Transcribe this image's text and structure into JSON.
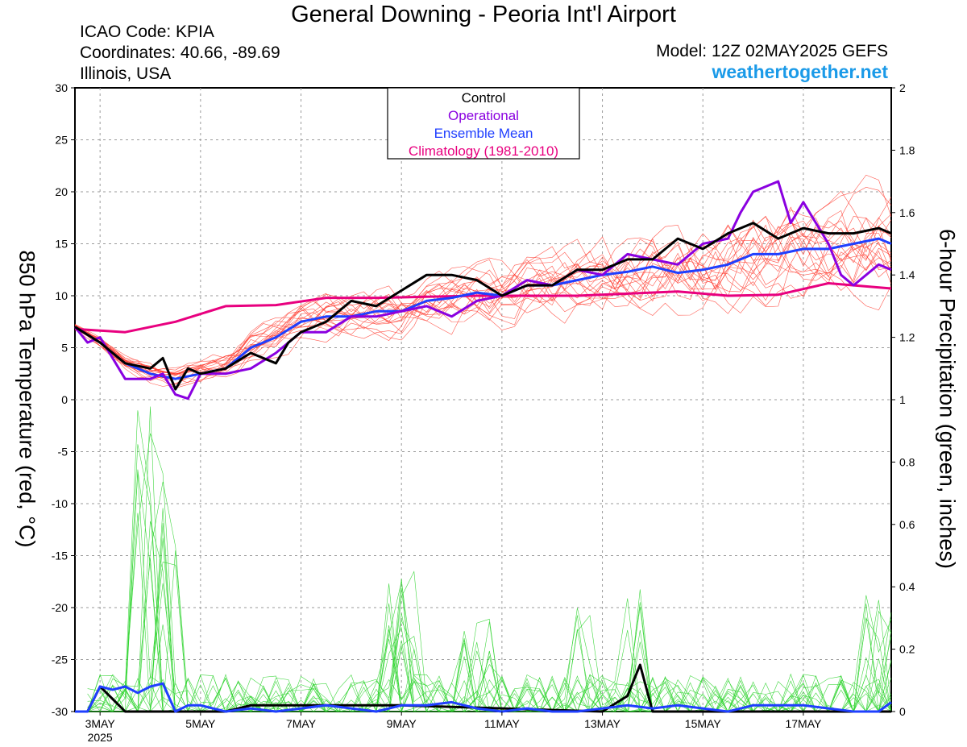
{
  "header": {
    "title": "General Downing - Peoria Int'l Airport",
    "icao": "ICAO Code: KPIA",
    "coordinates": "Coordinates: 40.66, -89.69",
    "region": "Illinois, USA",
    "model": "Model: 12Z 02MAY2025 GEFS",
    "site": "weathertogether.net"
  },
  "chart_data": {
    "type": "line",
    "title": "General Downing - Peoria Int'l Airport",
    "ylabel_left": "850 hPa Temperature (red, °C)",
    "ylabel_right": "6-hour Precipitation (green, inches)",
    "x_unit": "days since 2025-05-02 12Z",
    "xlim": [
      0,
      16.25
    ],
    "ylim_left": [
      -30,
      30
    ],
    "ylim_right": [
      0,
      2
    ],
    "grid": true,
    "yticks_left": [
      -30,
      -25,
      -20,
      -15,
      -10,
      -5,
      0,
      5,
      10,
      15,
      20,
      25,
      30
    ],
    "yticks_right": [
      0,
      0.2,
      0.4,
      0.6,
      0.8,
      1,
      1.2,
      1.4,
      1.6,
      1.8,
      2
    ],
    "xtick_labels": [
      {
        "x": 0.5,
        "label": "3MAY",
        "sub": "2025"
      },
      {
        "x": 2.5,
        "label": "5MAY"
      },
      {
        "x": 4.5,
        "label": "7MAY"
      },
      {
        "x": 6.5,
        "label": "9MAY"
      },
      {
        "x": 8.5,
        "label": "11MAY"
      },
      {
        "x": 10.5,
        "label": "13MAY"
      },
      {
        "x": 12.5,
        "label": "15MAY"
      },
      {
        "x": 14.5,
        "label": "17MAY"
      }
    ],
    "legend": {
      "position": "top-center",
      "entries": [
        {
          "label": "Control",
          "color": "#000000"
        },
        {
          "label": "Operational",
          "color": "#8a00e0"
        },
        {
          "label": "Ensemble Mean",
          "color": "#1f3fff"
        },
        {
          "label": "Climatology (1981-2010)",
          "color": "#e8007f"
        }
      ]
    },
    "series": [
      {
        "name": "Control",
        "color": "#000000",
        "axis": "left",
        "x": [
          0,
          0.5,
          1.0,
          1.5,
          1.75,
          2.0,
          2.25,
          2.5,
          3.0,
          3.5,
          4.0,
          4.25,
          4.5,
          5.0,
          5.5,
          6.0,
          6.5,
          7.0,
          7.5,
          8.0,
          8.5,
          9.0,
          9.5,
          10.0,
          10.5,
          11.0,
          11.5,
          12.0,
          12.5,
          13.0,
          13.5,
          14.0,
          14.5,
          15.0,
          15.5,
          16.0,
          16.25
        ],
        "y": [
          7,
          5.5,
          3.5,
          3,
          4,
          1,
          3,
          2.5,
          3,
          4.5,
          3.5,
          5.5,
          6.5,
          7.5,
          9.5,
          9,
          10.5,
          12,
          12,
          11.5,
          10,
          11,
          11,
          12.5,
          12.5,
          13.5,
          13.5,
          15.5,
          14.5,
          16,
          17,
          15.5,
          16.5,
          16,
          16,
          16.5,
          16
        ]
      },
      {
        "name": "Operational",
        "color": "#8a00e0",
        "axis": "left",
        "x": [
          0,
          0.25,
          0.5,
          1.0,
          1.5,
          1.75,
          2.0,
          2.25,
          2.5,
          3.0,
          3.5,
          4.0,
          4.5,
          5.0,
          5.5,
          6.0,
          6.5,
          7.0,
          7.5,
          8.0,
          8.5,
          9.0,
          9.5,
          10.0,
          10.5,
          11.0,
          11.5,
          12.0,
          12.5,
          13.0,
          13.25,
          13.5,
          14.0,
          14.25,
          14.5,
          15.0,
          15.25,
          15.5,
          16.0,
          16.25
        ],
        "y": [
          7,
          5.5,
          6,
          2,
          2,
          2.5,
          0.5,
          0.1,
          2.5,
          2.5,
          3,
          4.5,
          6.5,
          6.5,
          8,
          8,
          8.5,
          9,
          8,
          9.5,
          10,
          11.5,
          11,
          12.5,
          12,
          14,
          13.5,
          13,
          15,
          15.5,
          18,
          20,
          21,
          17,
          19,
          15,
          12,
          11,
          13,
          12.5
        ]
      },
      {
        "name": "Ensemble Mean",
        "color": "#1f3fff",
        "axis": "left",
        "x": [
          0,
          0.5,
          1.0,
          1.5,
          2.0,
          2.5,
          3.0,
          3.5,
          4.0,
          4.5,
          5.0,
          5.5,
          6.0,
          6.5,
          7.0,
          7.5,
          8.0,
          8.5,
          9.0,
          9.5,
          10.0,
          10.5,
          11.0,
          11.5,
          12.0,
          12.5,
          13.0,
          13.5,
          14.0,
          14.5,
          15.0,
          15.5,
          16.0,
          16.25
        ],
        "y": [
          7,
          5.5,
          3.5,
          2.5,
          2,
          2.5,
          3,
          5,
          6,
          7.5,
          8,
          8,
          8.5,
          8.5,
          9.5,
          9.8,
          10.3,
          10,
          11,
          11,
          11.5,
          12,
          12.3,
          12.8,
          12.2,
          12.5,
          13,
          14,
          14,
          14.5,
          14.5,
          15,
          15.5,
          15
        ]
      },
      {
        "name": "Climatology (1981-2010)",
        "color": "#e8007f",
        "axis": "left",
        "x": [
          0,
          1,
          2,
          3,
          4,
          5,
          6,
          7,
          8,
          9,
          10,
          11,
          12,
          13,
          14,
          15,
          16.25
        ],
        "y": [
          6.8,
          6.5,
          7.5,
          9,
          9.1,
          9.8,
          9.8,
          9.9,
          10,
          10,
          10,
          10.2,
          10.4,
          10,
          10.1,
          11.2,
          10.7
        ]
      },
      {
        "name": "Control precipitation",
        "color": "#000000",
        "axis": "right",
        "x": [
          0,
          0.25,
          0.5,
          0.75,
          1.0,
          2.0,
          3.0,
          3.5,
          6.5,
          10.5,
          11.0,
          11.25,
          11.5,
          12.0,
          16.25
        ],
        "y": [
          0,
          0,
          0.08,
          0.04,
          0,
          0,
          0,
          0.02,
          0.02,
          0,
          0.05,
          0.15,
          0,
          0,
          0
        ]
      },
      {
        "name": "Ensemble mean precipitation",
        "color": "#1f3fff",
        "axis": "right",
        "x": [
          0,
          0.25,
          0.5,
          0.75,
          1.0,
          1.25,
          1.5,
          1.75,
          2.0,
          2.25,
          2.5,
          3.0,
          3.5,
          4.0,
          4.5,
          5.0,
          5.5,
          6.0,
          6.5,
          7.0,
          7.5,
          8.0,
          8.5,
          9.0,
          9.5,
          10.0,
          10.5,
          11.0,
          11.5,
          12.0,
          12.5,
          13.0,
          13.5,
          14.0,
          14.5,
          15.0,
          15.5,
          16.0,
          16.25
        ],
        "y": [
          0,
          0,
          0.08,
          0.07,
          0.08,
          0.06,
          0.08,
          0.09,
          0.0,
          0.02,
          0.02,
          0,
          0.01,
          0,
          0.01,
          0.02,
          0.01,
          0,
          0.02,
          0.02,
          0.03,
          0.01,
          0,
          0.01,
          0,
          0,
          0.01,
          0.02,
          0.01,
          0.02,
          0.01,
          0,
          0.02,
          0.02,
          0.02,
          0.01,
          0,
          0,
          0.03
        ]
      }
    ]
  }
}
